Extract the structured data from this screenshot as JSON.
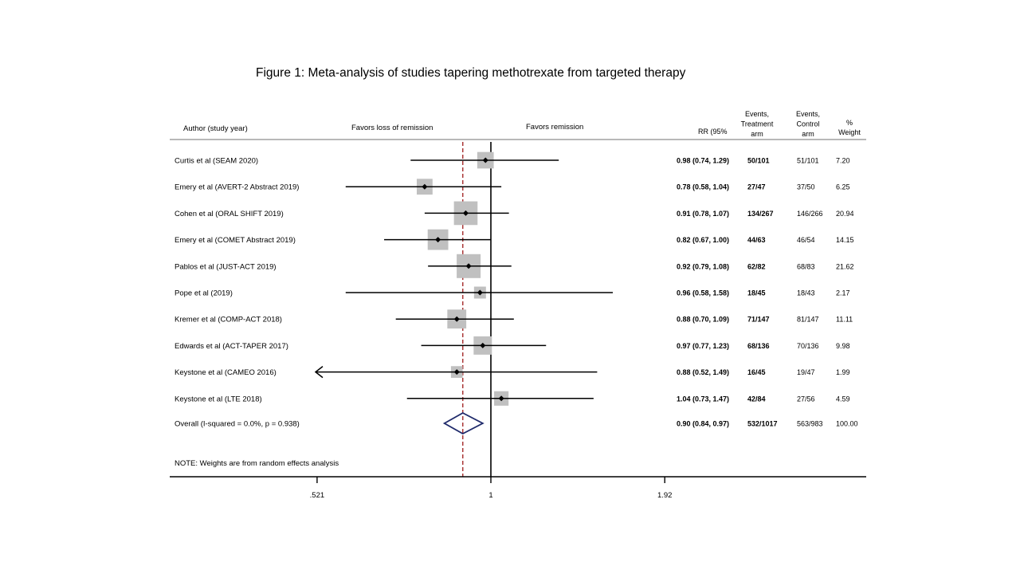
{
  "chart_data": {
    "type": "forest",
    "title": "Figure 1: Meta-analysis of studies tapering methotrexate from targeted therapy",
    "headers": {
      "author": "Author (study year)",
      "favors_left": "Favors loss of remission",
      "favors_right": "Favors remission",
      "rr": "RR (95%",
      "treatment": [
        "Events,",
        "Treatment",
        "arm"
      ],
      "control": [
        "Events,",
        "Control",
        "arm"
      ],
      "weight": [
        "%",
        "Weight"
      ]
    },
    "x_axis": {
      "scale": "log",
      "ticks": [
        0.521,
        1,
        1.92
      ],
      "tick_labels": [
        ".521",
        "1",
        "1.92"
      ],
      "reference_line": 1,
      "overall_line": 0.9
    },
    "studies": [
      {
        "label": "Curtis et al (SEAM 2020)",
        "rr": 0.98,
        "lo": 0.74,
        "hi": 1.29,
        "rr_text": "0.98 (0.74, 1.29)",
        "treatment": "50/101",
        "control": "51/101",
        "weight": 7.2,
        "weight_text": "7.20"
      },
      {
        "label": "Emery et al (AVERT-2 Abstract 2019)",
        "rr": 0.78,
        "lo": 0.58,
        "hi": 1.04,
        "rr_text": "0.78 (0.58, 1.04)",
        "treatment": "27/47",
        "control": "37/50",
        "weight": 6.25,
        "weight_text": "6.25"
      },
      {
        "label": "Cohen et al (ORAL SHIFT 2019)",
        "rr": 0.91,
        "lo": 0.78,
        "hi": 1.07,
        "rr_text": "0.91 (0.78, 1.07)",
        "treatment": "134/267",
        "control": "146/266",
        "weight": 20.94,
        "weight_text": "20.94"
      },
      {
        "label": "Emery et al (COMET Abstract 2019)",
        "rr": 0.82,
        "lo": 0.67,
        "hi": 1.0,
        "rr_text": "0.82 (0.67, 1.00)",
        "treatment": "44/63",
        "control": "46/54",
        "weight": 14.15,
        "weight_text": "14.15"
      },
      {
        "label": "Pablos et al (JUST-ACT 2019)",
        "rr": 0.92,
        "lo": 0.79,
        "hi": 1.08,
        "rr_text": "0.92 (0.79, 1.08)",
        "treatment": "62/82",
        "control": "68/83",
        "weight": 21.62,
        "weight_text": "21.62"
      },
      {
        "label": "Pope et al (2019)",
        "rr": 0.96,
        "lo": 0.58,
        "hi": 1.58,
        "rr_text": "0.96 (0.58, 1.58)",
        "treatment": "18/45",
        "control": "18/43",
        "weight": 2.17,
        "weight_text": "2.17"
      },
      {
        "label": "Kremer et al (COMP-ACT 2018)",
        "rr": 0.88,
        "lo": 0.7,
        "hi": 1.09,
        "rr_text": "0.88 (0.70, 1.09)",
        "treatment": "71/147",
        "control": "81/147",
        "weight": 11.11,
        "weight_text": "11.11"
      },
      {
        "label": "Edwards et al (ACT-TAPER 2017)",
        "rr": 0.97,
        "lo": 0.77,
        "hi": 1.23,
        "rr_text": "0.97 (0.77, 1.23)",
        "treatment": "68/136",
        "control": "70/136",
        "weight": 9.98,
        "weight_text": "9.98"
      },
      {
        "label": "Keystone et al (CAMEO 2016)",
        "rr": 0.88,
        "lo": 0.52,
        "hi": 1.49,
        "rr_text": "0.88 (0.52, 1.49)",
        "treatment": "16/45",
        "control": "19/47",
        "weight": 1.99,
        "weight_text": "1.99",
        "arrow_left": true
      },
      {
        "label": "Keystone et al (LTE 2018)",
        "rr": 1.04,
        "lo": 0.73,
        "hi": 1.47,
        "rr_text": "1.04 (0.73, 1.47)",
        "treatment": "42/84",
        "control": "27/56",
        "weight": 4.59,
        "weight_text": "4.59"
      }
    ],
    "overall": {
      "label": "Overall  (I-squared = 0.0%, p = 0.938)",
      "rr": 0.9,
      "lo": 0.84,
      "hi": 0.97,
      "rr_text": "0.90 (0.84, 0.97)",
      "treatment": "532/1017",
      "control": "563/983",
      "weight_text": "100.00"
    },
    "note": "NOTE: Weights are from random effects analysis",
    "colors": {
      "box": "#c0c0c0",
      "line": "#000000",
      "overall_line": "#a52a2a",
      "diamond": "#1f2a6b"
    }
  }
}
